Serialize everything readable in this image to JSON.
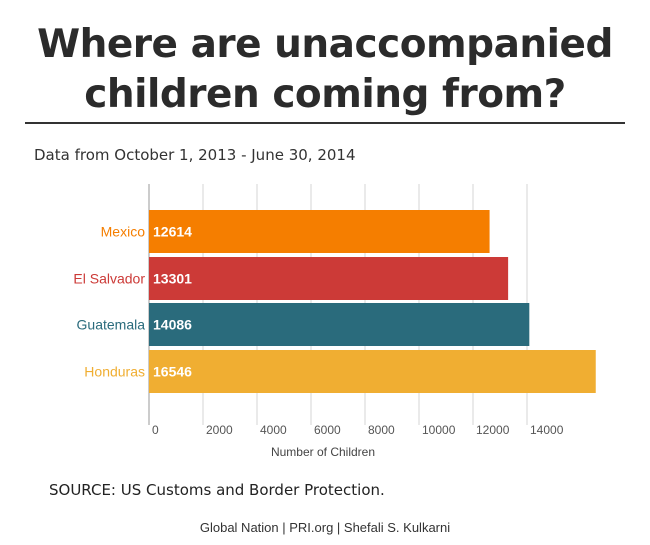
{
  "title_line1": "Where are unaccompanied",
  "title_line2": "children coming from?",
  "subtitle": "Data from October 1, 2013 - June 30, 2014",
  "source": "SOURCE: US Customs and Border Protection.",
  "credit": "Global Nation | PRI.org | Shefali S. Kulkarni",
  "chart_data": {
    "type": "bar",
    "orientation": "horizontal",
    "categories": [
      "Mexico",
      "El Salvador",
      "Guatemala",
      "Honduras"
    ],
    "values": [
      12614,
      13301,
      14086,
      16546
    ],
    "data_labels": [
      "12614",
      "13301",
      "14086",
      "16546"
    ],
    "colors": [
      "#f57e00",
      "#cc3a37",
      "#2a6b7c",
      "#f0ae32"
    ],
    "xlabel": "Number of Children",
    "ylabel": "",
    "xlim": [
      0,
      16000
    ],
    "xticks": [
      0,
      2000,
      4000,
      6000,
      8000,
      10000,
      12000,
      14000
    ],
    "xtick_labels": [
      "0",
      "2000",
      "4000",
      "6000",
      "8000",
      "10000",
      "12000",
      "14000"
    ],
    "grid": "vertical",
    "legend": "none"
  }
}
